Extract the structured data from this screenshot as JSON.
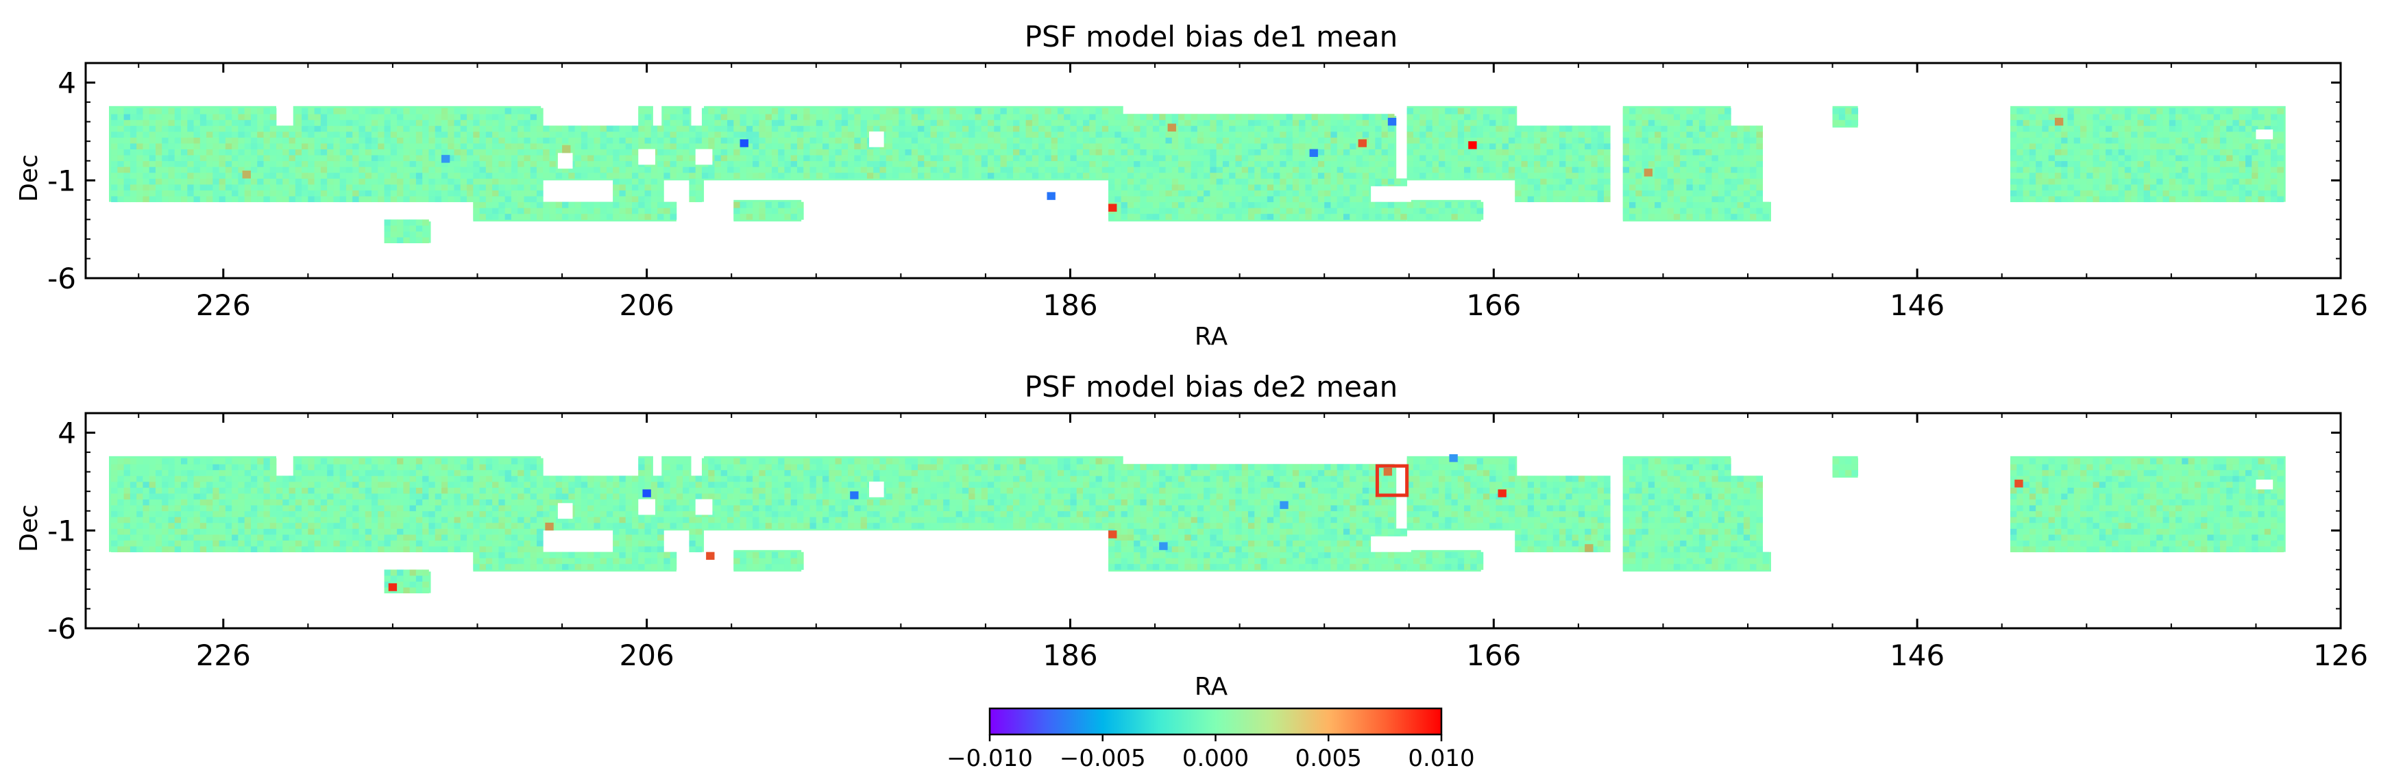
{
  "chart_data": [
    {
      "type": "heatmap",
      "title": "PSF model bias de1 mean",
      "xlabel": "RA",
      "ylabel": "Dec",
      "xlim": [
        232.5,
        126
      ],
      "ylim": [
        -6,
        5
      ],
      "xticks": [
        226,
        206,
        186,
        166,
        146,
        126
      ],
      "xtick_labels": [
        "226",
        "206",
        "186",
        "166",
        "146",
        "126"
      ],
      "yticks": [
        4,
        -1,
        -6
      ],
      "ytick_labels": [
        "4",
        "-1",
        "-6"
      ],
      "grid": false,
      "footprint_regions": [
        {
          "ra": [
            231.4,
            223.5
          ],
          "dec": [
            -2.1,
            2.8
          ]
        },
        {
          "ra": [
            223.5,
            222.7
          ],
          "dec": [
            -2.1,
            1.7
          ]
        },
        {
          "ra": [
            222.7,
            211.0
          ],
          "dec": [
            -2.1,
            2.8
          ]
        },
        {
          "ra": [
            214.2,
            204.6
          ],
          "dec": [
            -3.1,
            -2.1
          ]
        },
        {
          "ra": [
            218.3,
            216.2
          ],
          "dec": [
            -4.2,
            -3.1
          ]
        },
        {
          "ra": [
            211.0,
            207.6
          ],
          "dec": [
            -1.0,
            1.7
          ]
        },
        {
          "ra": [
            207.6,
            206.4
          ],
          "dec": [
            -2.1,
            1.7
          ]
        },
        {
          "ra": [
            206.4,
            205.7
          ],
          "dec": [
            -2.1,
            2.8
          ]
        },
        {
          "ra": [
            205.7,
            205.3
          ],
          "dec": [
            -2.1,
            1.7
          ]
        },
        {
          "ra": [
            205.3,
            203.9
          ],
          "dec": [
            -1.0,
            2.8
          ]
        },
        {
          "ra": [
            203.9,
            203.3
          ],
          "dec": [
            -2.1,
            1.7
          ]
        },
        {
          "ra": [
            203.3,
            183.5
          ],
          "dec": [
            -1.0,
            2.8
          ]
        },
        {
          "ra": [
            201.9,
            198.7
          ],
          "dec": [
            -3.1,
            -2.0
          ]
        },
        {
          "ra": [
            184.2,
            170.1
          ],
          "dec": [
            -3.1,
            -1.0
          ]
        },
        {
          "ra": [
            170.1,
            166.6
          ],
          "dec": [
            -3.1,
            -2.0
          ]
        },
        {
          "ra": [
            183.5,
            170.6
          ],
          "dec": [
            -1.0,
            2.3
          ]
        },
        {
          "ra": [
            170.1,
            164.9
          ],
          "dec": [
            -1.0,
            2.8
          ]
        },
        {
          "ra": [
            164.9,
            160.5
          ],
          "dec": [
            -2.1,
            1.7
          ]
        },
        {
          "ra": [
            159.9,
            154.8
          ],
          "dec": [
            -2.1,
            2.8
          ]
        },
        {
          "ra": [
            154.8,
            153.4
          ],
          "dec": [
            -2.1,
            1.7
          ]
        },
        {
          "ra": [
            159.9,
            152.9
          ],
          "dec": [
            -3.1,
            -2.1
          ]
        },
        {
          "ra": [
            150.0,
            148.8
          ],
          "dec": [
            1.7,
            2.8
          ]
        },
        {
          "ra": [
            141.6,
            128.6
          ],
          "dec": [
            -2.1,
            2.8
          ]
        }
      ],
      "holes": [
        {
          "ra": [
            210.2,
            209.5
          ],
          "dec": [
            -0.4,
            0.4
          ]
        },
        {
          "ra": [
            206.4,
            205.6
          ],
          "dec": [
            -0.2,
            0.6
          ]
        },
        {
          "ra": [
            203.7,
            202.9
          ],
          "dec": [
            -0.2,
            0.6
          ]
        },
        {
          "ra": [
            195.5,
            194.8
          ],
          "dec": [
            0.7,
            1.5
          ]
        },
        {
          "ra": [
            171.8,
            169.9
          ],
          "dec": [
            -2.1,
            -1.3
          ]
        },
        {
          "ra": [
            130.0,
            129.2
          ],
          "dec": [
            1.1,
            1.6
          ]
        }
      ],
      "hot_pixels": [
        {
          "ra": 224.9,
          "dec": -0.7,
          "value": 0.005
        },
        {
          "ra": 209.8,
          "dec": 0.6,
          "value": 0.004
        },
        {
          "ra": 184.0,
          "dec": -2.4,
          "value": 0.009
        },
        {
          "ra": 174.5,
          "dec": 0.4,
          "value": -0.007
        },
        {
          "ra": 172.2,
          "dec": 0.9,
          "value": 0.008
        },
        {
          "ra": 170.8,
          "dec": 2.0,
          "value": -0.007
        },
        {
          "ra": 167.0,
          "dec": 0.8,
          "value": 0.01
        },
        {
          "ra": 139.3,
          "dec": 2.0,
          "value": 0.006
        },
        {
          "ra": 201.4,
          "dec": 0.9,
          "value": -0.008
        },
        {
          "ra": 186.9,
          "dec": -1.8,
          "value": -0.007
        },
        {
          "ra": 215.5,
          "dec": 0.1,
          "value": -0.006
        },
        {
          "ra": 158.7,
          "dec": -0.6,
          "value": 0.006
        },
        {
          "ra": 181.2,
          "dec": 1.7,
          "value": 0.006
        }
      ],
      "value_range": [
        -0.01,
        0.01
      ],
      "highlight_box": null
    },
    {
      "type": "heatmap",
      "title": "PSF model bias de2 mean",
      "xlabel": "RA",
      "ylabel": "Dec",
      "xlim": [
        232.5,
        126
      ],
      "ylim": [
        -6,
        5
      ],
      "xticks": [
        226,
        206,
        186,
        166,
        146,
        126
      ],
      "xtick_labels": [
        "226",
        "206",
        "186",
        "166",
        "146",
        "126"
      ],
      "yticks": [
        4,
        -1,
        -6
      ],
      "ytick_labels": [
        "4",
        "-1",
        "-6"
      ],
      "grid": false,
      "footprint_regions": [
        {
          "ra": [
            231.4,
            223.5
          ],
          "dec": [
            -2.1,
            2.8
          ]
        },
        {
          "ra": [
            223.5,
            222.7
          ],
          "dec": [
            -2.1,
            1.7
          ]
        },
        {
          "ra": [
            222.7,
            211.0
          ],
          "dec": [
            -2.1,
            2.8
          ]
        },
        {
          "ra": [
            214.2,
            204.6
          ],
          "dec": [
            -3.1,
            -2.1
          ]
        },
        {
          "ra": [
            218.3,
            216.2
          ],
          "dec": [
            -4.2,
            -3.1
          ]
        },
        {
          "ra": [
            211.0,
            207.6
          ],
          "dec": [
            -1.0,
            1.7
          ]
        },
        {
          "ra": [
            207.6,
            206.4
          ],
          "dec": [
            -2.1,
            1.7
          ]
        },
        {
          "ra": [
            206.4,
            205.7
          ],
          "dec": [
            -2.1,
            2.8
          ]
        },
        {
          "ra": [
            205.7,
            205.3
          ],
          "dec": [
            -2.1,
            1.7
          ]
        },
        {
          "ra": [
            205.3,
            203.9
          ],
          "dec": [
            -1.0,
            2.8
          ]
        },
        {
          "ra": [
            203.9,
            203.3
          ],
          "dec": [
            -2.1,
            1.7
          ]
        },
        {
          "ra": [
            203.3,
            183.5
          ],
          "dec": [
            -1.0,
            2.8
          ]
        },
        {
          "ra": [
            201.9,
            198.7
          ],
          "dec": [
            -3.1,
            -2.0
          ]
        },
        {
          "ra": [
            184.2,
            170.1
          ],
          "dec": [
            -3.1,
            -1.0
          ]
        },
        {
          "ra": [
            170.1,
            166.6
          ],
          "dec": [
            -3.1,
            -2.0
          ]
        },
        {
          "ra": [
            183.5,
            170.6
          ],
          "dec": [
            -1.0,
            2.3
          ]
        },
        {
          "ra": [
            170.1,
            164.9
          ],
          "dec": [
            -1.0,
            2.8
          ]
        },
        {
          "ra": [
            164.9,
            160.5
          ],
          "dec": [
            -2.1,
            1.7
          ]
        },
        {
          "ra": [
            159.9,
            154.8
          ],
          "dec": [
            -2.1,
            2.8
          ]
        },
        {
          "ra": [
            154.8,
            153.4
          ],
          "dec": [
            -2.1,
            1.7
          ]
        },
        {
          "ra": [
            159.9,
            152.9
          ],
          "dec": [
            -3.1,
            -2.1
          ]
        },
        {
          "ra": [
            150.0,
            148.8
          ],
          "dec": [
            1.7,
            2.8
          ]
        },
        {
          "ra": [
            141.6,
            128.6
          ],
          "dec": [
            -2.1,
            2.8
          ]
        }
      ],
      "holes": [
        {
          "ra": [
            210.2,
            209.5
          ],
          "dec": [
            -0.4,
            0.4
          ]
        },
        {
          "ra": [
            206.4,
            205.6
          ],
          "dec": [
            -0.2,
            0.6
          ]
        },
        {
          "ra": [
            203.7,
            202.9
          ],
          "dec": [
            -0.2,
            0.6
          ]
        },
        {
          "ra": [
            195.5,
            194.8
          ],
          "dec": [
            0.7,
            1.5
          ]
        },
        {
          "ra": [
            171.8,
            169.9
          ],
          "dec": [
            -2.1,
            -1.3
          ]
        },
        {
          "ra": [
            130.0,
            129.2
          ],
          "dec": [
            1.1,
            1.6
          ]
        }
      ],
      "hot_pixels": [
        {
          "ra": 218.0,
          "dec": -3.9,
          "value": 0.009
        },
        {
          "ra": 206.0,
          "dec": 0.9,
          "value": -0.008
        },
        {
          "ra": 203.0,
          "dec": -2.3,
          "value": 0.008
        },
        {
          "ra": 196.2,
          "dec": 0.8,
          "value": -0.007
        },
        {
          "ra": 184.0,
          "dec": -1.2,
          "value": 0.008
        },
        {
          "ra": 181.6,
          "dec": -1.8,
          "value": -0.006
        },
        {
          "ra": 171.0,
          "dec": 2.0,
          "value": 0.007
        },
        {
          "ra": 167.9,
          "dec": 2.7,
          "value": -0.006
        },
        {
          "ra": 165.6,
          "dec": 0.9,
          "value": 0.009
        },
        {
          "ra": 141.2,
          "dec": 1.4,
          "value": 0.008
        },
        {
          "ra": 210.6,
          "dec": -0.8,
          "value": 0.006
        },
        {
          "ra": 175.9,
          "dec": 0.3,
          "value": -0.006
        },
        {
          "ra": 161.5,
          "dec": -1.9,
          "value": 0.005
        }
      ],
      "value_range": [
        -0.01,
        0.01
      ],
      "highlight_box": {
        "ra": [
          171.5,
          170.1
        ],
        "dec": [
          0.8,
          2.3
        ],
        "color": "#e8341c"
      }
    }
  ],
  "colorbar": {
    "colormap": "rainbow",
    "vmin": -0.01,
    "vmax": 0.01,
    "ticks": [
      -0.01,
      -0.005,
      0.0,
      0.005,
      0.01
    ],
    "tick_labels": [
      "−0.010",
      "−0.005",
      "0.000",
      "0.005",
      "0.010"
    ]
  }
}
